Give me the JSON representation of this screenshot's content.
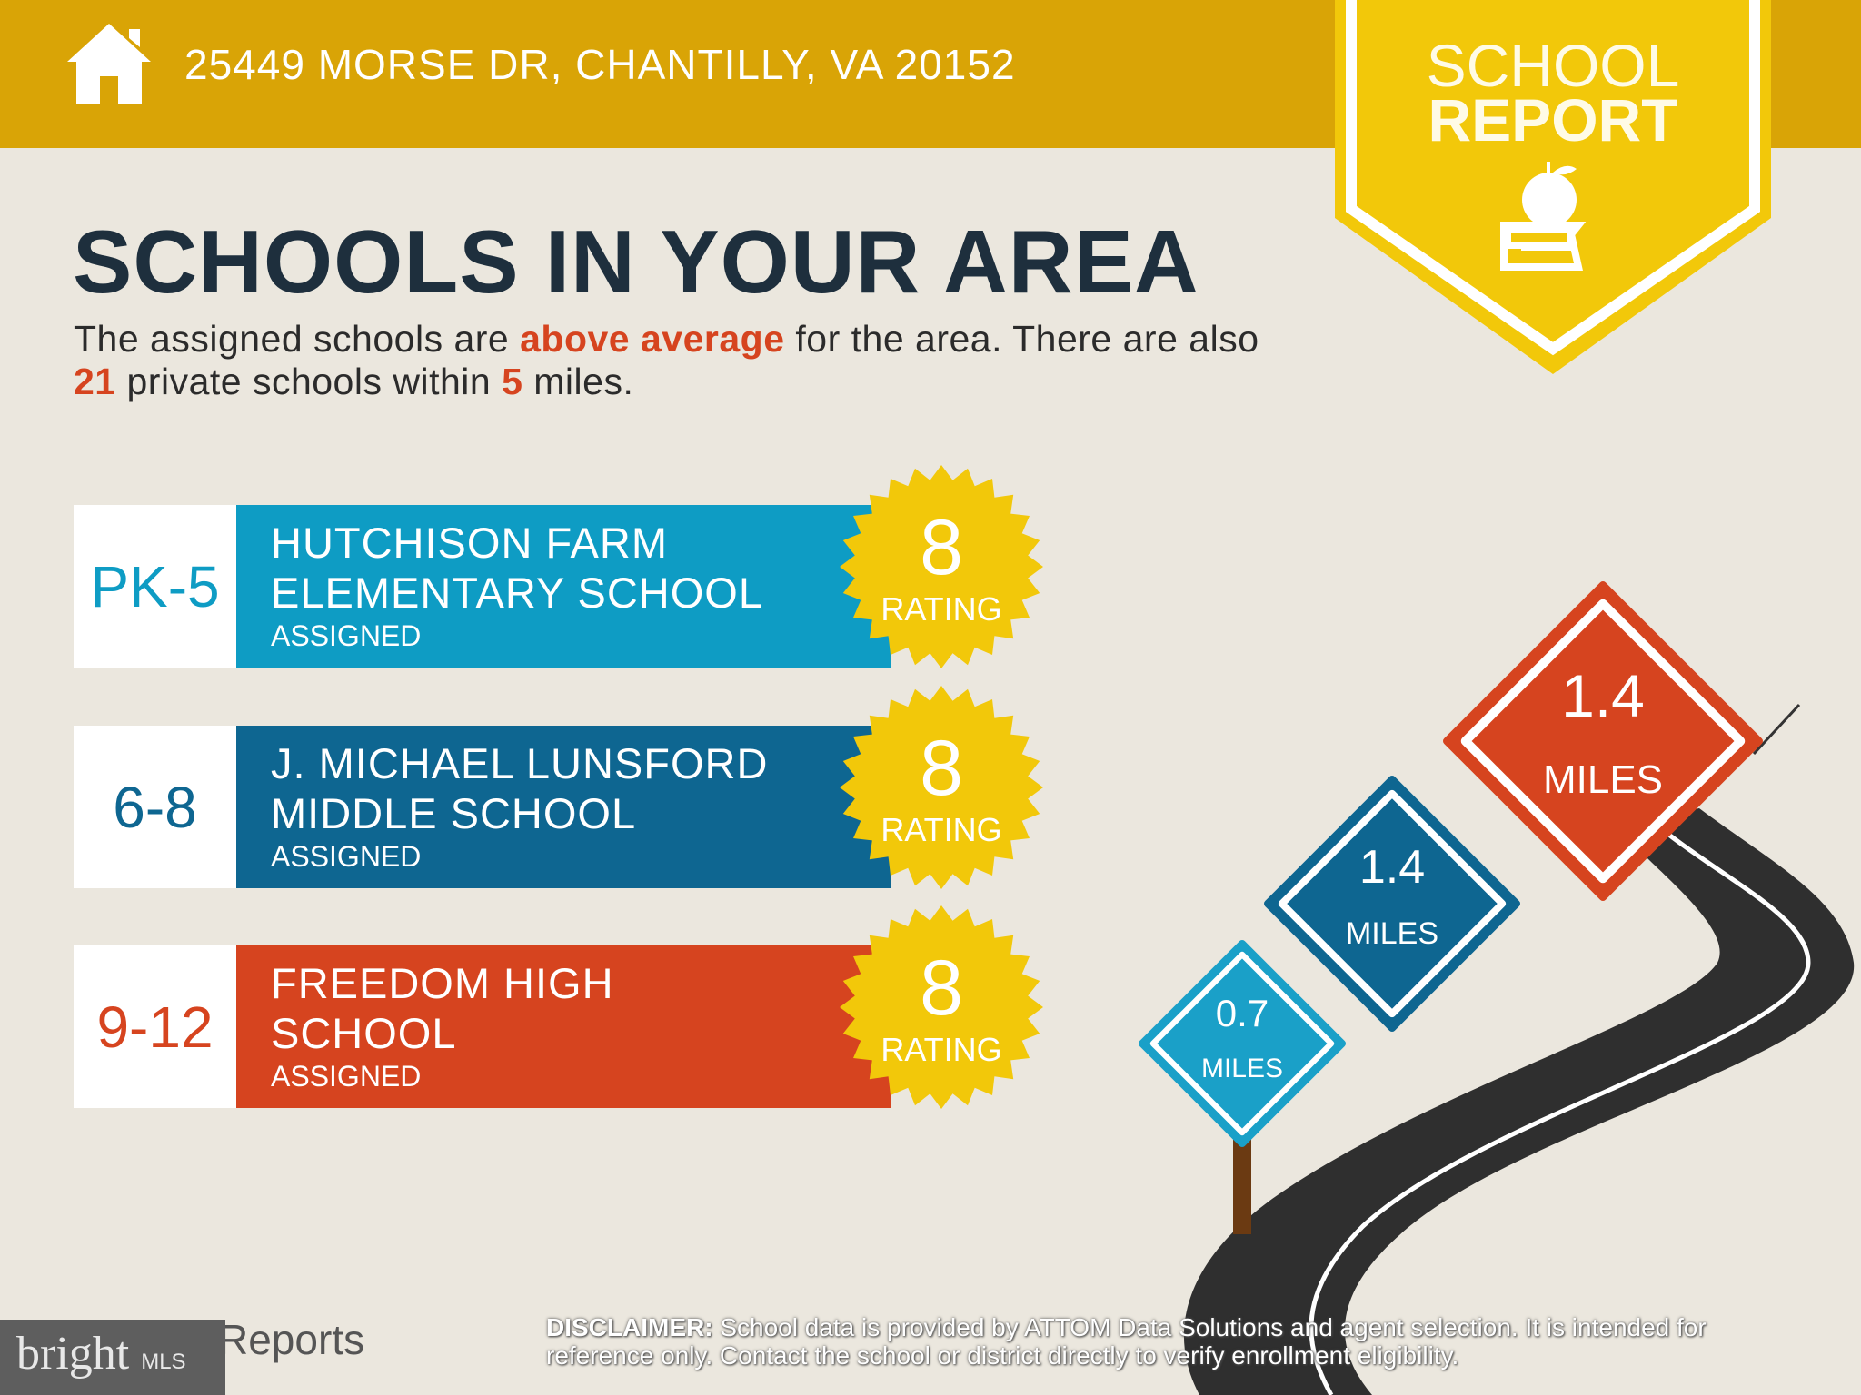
{
  "header": {
    "address": "25449 MORSE DR, CHANTILLY, VA 20152",
    "icon": "home-icon",
    "color": "#d9a406"
  },
  "badge": {
    "line1": "SCHOOL",
    "line2": "REPORT",
    "icon": "apple-on-book-icon",
    "color": "#f2c80a"
  },
  "title": "SCHOOLS IN YOUR AREA",
  "summary": {
    "p1": "The assigned schools are ",
    "highlight": "above average",
    "p2": " for the area. There are also ",
    "count": "21",
    "p3": " private schools within ",
    "miles": "5",
    "p4": " miles."
  },
  "schools": [
    {
      "grades": "PK-5",
      "name1": "HUTCHISON FARM",
      "name2": "ELEMENTARY SCHOOL",
      "status": "ASSIGNED",
      "rating": "8",
      "rating_label": "RATING",
      "color": "#0e9cc4",
      "distance": "0.7",
      "unit": "MILES"
    },
    {
      "grades": "6-8",
      "name1": "J. MICHAEL LUNSFORD",
      "name2": "MIDDLE SCHOOL",
      "status": "ASSIGNED",
      "rating": "8",
      "rating_label": "RATING",
      "color": "#0e6691",
      "distance": "1.4",
      "unit": "MILES"
    },
    {
      "grades": "9-12",
      "name1": "FREEDOM HIGH",
      "name2": "SCHOOL",
      "status": "ASSIGNED",
      "rating": "8",
      "rating_label": "RATING",
      "color": "#d6441f",
      "distance": "1.4",
      "unit": "MILES"
    }
  ],
  "footer": {
    "disclaimer_label": "DISCLAIMER:",
    "disclaimer": " School data is provided by ATTOM Data Solutions and agent selection. It is intended for reference only. Contact the school or district directly to verify enrollment eligibility.",
    "reports_logo": "Reports",
    "watermark": "bright",
    "watermark_suffix": "MLS"
  }
}
